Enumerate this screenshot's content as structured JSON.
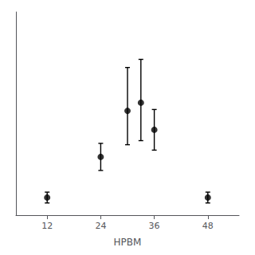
{
  "chart_data": {
    "type": "errorbar",
    "xlabel": "HPBM",
    "x": [
      12,
      24,
      30,
      33,
      36,
      48
    ],
    "values": [
      0.08,
      0.38,
      0.72,
      0.78,
      0.58,
      0.08
    ],
    "yerr_lo": [
      0.04,
      0.1,
      0.25,
      0.28,
      0.15,
      0.04
    ],
    "yerr_hi": [
      0.04,
      0.1,
      0.32,
      0.32,
      0.15,
      0.04
    ],
    "color": "#000000",
    "marker": "o",
    "xlim": [
      5,
      55
    ],
    "xticks": [
      12,
      24,
      36,
      48
    ],
    "ylim": [
      -0.05,
      1.45
    ],
    "tick_labels": "x",
    "grid": false
  }
}
